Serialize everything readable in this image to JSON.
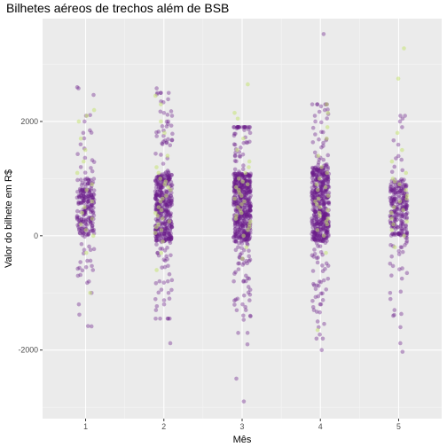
{
  "chart_data": {
    "type": "scatter",
    "title": "Bilhetes aéreos de trechos além de BSB",
    "xlabel": "Mês",
    "ylabel": "Valor do bilhete em R$",
    "x_ticks": [
      "1",
      "2",
      "3",
      "4",
      "5"
    ],
    "y_ticks": [
      "-2000",
      "0",
      "2000"
    ],
    "y_tick_values": [
      -2000,
      0,
      2000
    ],
    "xlim": [
      0.45,
      5.55
    ],
    "ylim": [
      -3200,
      3800
    ],
    "grid": true,
    "legend": "none",
    "jitter_width": 0.11,
    "colors": {
      "primary": "#6a1b8a",
      "secondary": "#c6e377",
      "panel": "#ebebeb",
      "grid": "#ffffff"
    },
    "distribution_note_free": true,
    "series": [
      {
        "color": "#6a1b8a",
        "groups": [
          {
            "x": 1,
            "n": 240,
            "core": [
              0,
              1000
            ],
            "spread": [
              -1600,
              2600
            ],
            "extremes": [
              2580,
              2100,
              2000,
              1800,
              1600,
              -550,
              -600,
              -700,
              -800,
              -1000,
              -1200,
              -1580
            ]
          },
          {
            "x": 2,
            "n": 440,
            "core": [
              -100,
              1100
            ],
            "spread": [
              -1450,
              2500
            ],
            "extremes": [
              2580,
              2500,
              2350,
              2150,
              2100,
              2000,
              -1000,
              -1100,
              -1200,
              -1300,
              -1450,
              -1880
            ]
          },
          {
            "x": 3,
            "n": 560,
            "core": [
              -100,
              1100
            ],
            "spread": [
              -1700,
              1900
            ],
            "extremes": [
              1850,
              1800,
              -1200,
              -1300,
              -1400,
              -1700,
              -1900,
              -2500,
              -2900
            ]
          },
          {
            "x": 4,
            "n": 520,
            "core": [
              -100,
              1200
            ],
            "spread": [
              -1800,
              2300
            ],
            "extremes": [
              3530,
              2300,
              2200,
              2100,
              2000,
              -1200,
              -1300,
              -1500,
              -1600,
              -1800,
              -2000
            ]
          },
          {
            "x": 5,
            "n": 260,
            "core": [
              0,
              1000
            ],
            "spread": [
              -1400,
              2100
            ],
            "extremes": [
              2100,
              2050,
              2000,
              1900,
              -1000,
              -1300,
              -1400,
              -1600,
              -1880,
              -2030
            ]
          }
        ]
      },
      {
        "color": "#c6e377",
        "groups": [
          {
            "x": 1,
            "n": 18,
            "values": [
              2100,
              2200,
              2000,
              1700,
              1300,
              1100,
              900,
              600,
              400,
              200,
              100,
              -300,
              -1000,
              1500,
              800,
              300,
              0,
              500
            ]
          },
          {
            "x": 2,
            "n": 28,
            "values": [
              2450,
              2300,
              2000,
              1800,
              1400,
              1200,
              1000,
              900,
              800,
              700,
              600,
              500,
              400,
              300,
              200,
              100,
              50,
              -100,
              -300,
              -600,
              1100,
              850,
              650,
              450,
              250,
              150,
              950,
              350
            ]
          },
          {
            "x": 3,
            "n": 30,
            "values": [
              2650,
              2150,
              2050,
              1700,
              1500,
              1300,
              1100,
              1000,
              900,
              800,
              700,
              600,
              500,
              400,
              300,
              200,
              100,
              0,
              -200,
              -400,
              1200,
              950,
              750,
              550,
              350,
              250,
              150,
              650,
              450,
              850
            ]
          },
          {
            "x": 4,
            "n": 26,
            "values": [
              2300,
              2150,
              1900,
              1700,
              1400,
              1200,
              1000,
              900,
              800,
              700,
              600,
              500,
              400,
              300,
              200,
              100,
              0,
              -300,
              -1650,
              1100,
              850,
              650,
              450,
              250,
              550,
              350
            ]
          },
          {
            "x": 5,
            "n": 22,
            "values": [
              3280,
              2750,
              1800,
              1500,
              1300,
              1100,
              1000,
              900,
              800,
              700,
              600,
              500,
              400,
              300,
              200,
              100,
              0,
              -200,
              950,
              650,
              450,
              250
            ]
          }
        ]
      }
    ]
  }
}
